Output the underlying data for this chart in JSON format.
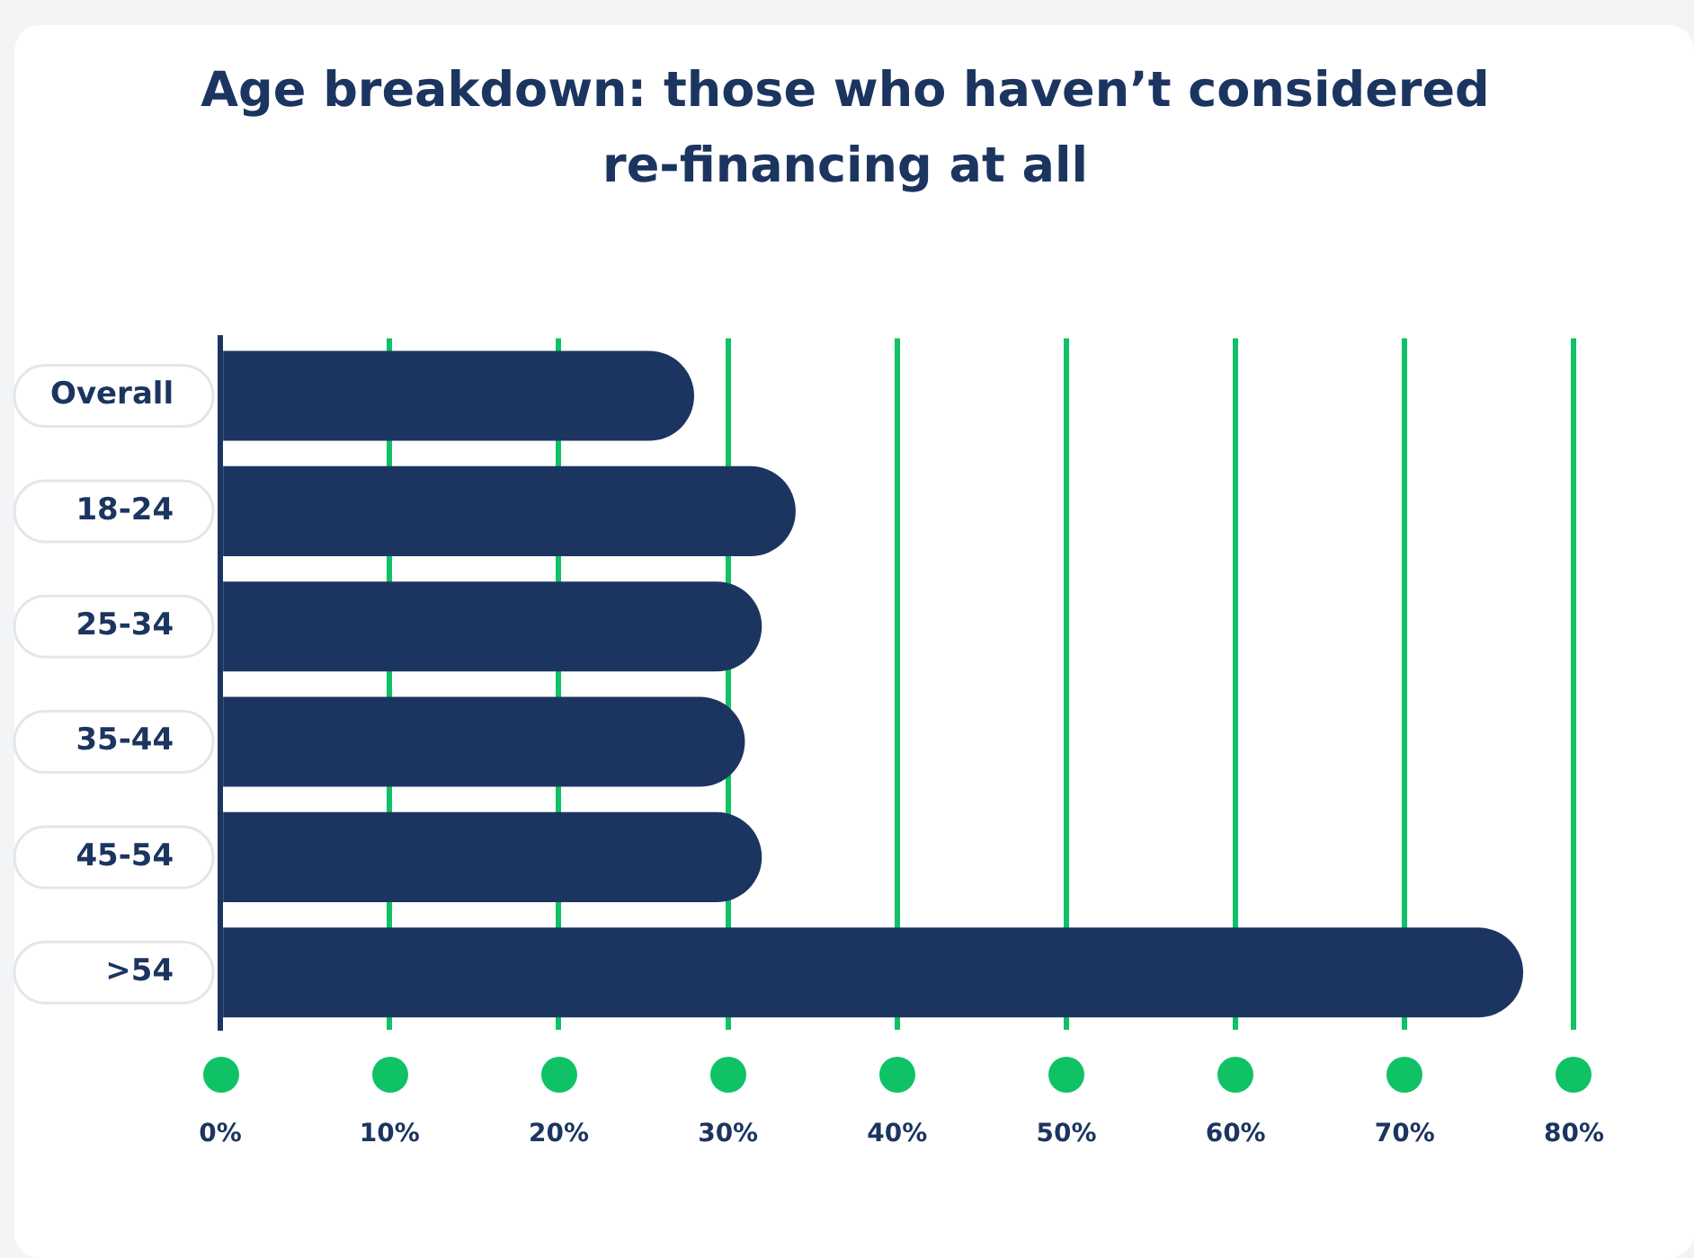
{
  "chart_data": {
    "type": "bar",
    "orientation": "horizontal",
    "title": "Age breakdown: those who haven’t considered re-financing at all",
    "categories": [
      "Overall",
      "18-24",
      "25-34",
      "35-44",
      "45-54",
      ">54"
    ],
    "values": [
      28,
      34,
      32,
      31,
      32,
      77
    ],
    "color": "#1c3560",
    "xlim": [
      0,
      80
    ],
    "xticks": [
      {
        "value": 0,
        "label": "0%"
      },
      {
        "value": 10,
        "label": "10%"
      },
      {
        "value": 20,
        "label": "20%"
      },
      {
        "value": 30,
        "label": "30%"
      },
      {
        "value": 40,
        "label": "40%"
      },
      {
        "value": 50,
        "label": "50%"
      },
      {
        "value": 60,
        "label": "60%"
      },
      {
        "value": 70,
        "label": "70%"
      },
      {
        "value": 80,
        "label": "80%"
      }
    ],
    "grid": "x",
    "legend": false
  }
}
